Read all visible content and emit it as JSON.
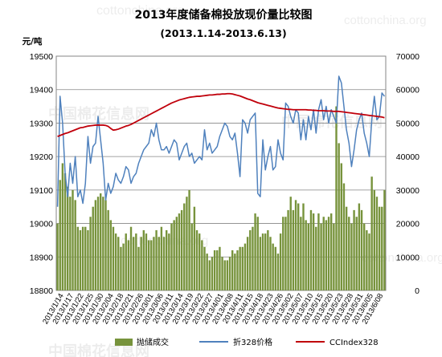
{
  "chart_data": {
    "type": "bar+line",
    "title": "2013年度储备棉投放现价量比较图",
    "subtitle": "(2013.1.14-2013.6.13)",
    "y_left_unit": "元/吨",
    "y_left_lim": [
      18800,
      19500
    ],
    "y_left_ticks": [
      19500,
      19400,
      19300,
      19200,
      19100,
      19000,
      18900,
      18800
    ],
    "y_right_lim": [
      0,
      70000
    ],
    "y_right_ticks": [
      70000,
      60000,
      50000,
      40000,
      30000,
      20000,
      10000,
      0
    ],
    "x_tick_labels": [
      "2013/1/14",
      "2013/1/17",
      "2013/1/22",
      "2013/1/25",
      "2013/1/30",
      "2013/2/04",
      "2013/2/18",
      "2013/2/21",
      "2013/2/26",
      "2013/3/01",
      "2013/3/06",
      "2013/3/11",
      "2013/3/14",
      "2013/3/19",
      "2013/3/22",
      "2013/3/27",
      "2013/4/01",
      "2013/4/08",
      "2013/4/11",
      "2013/4/15",
      "2013/4/18",
      "2013/4/23",
      "2013/4/26",
      "2013/5/02",
      "2013/5/07",
      "2013/5/10",
      "2013/5/15",
      "2013/5/20",
      "2013/5/23",
      "2013/5/28",
      "2013/5/31",
      "2013/6/05",
      "2013/6/08"
    ],
    "legend_position": "bottom",
    "grid": true,
    "series": [
      {
        "name": "抛储成交",
        "axis": "right",
        "kind": "bar",
        "color": "#77933c",
        "values": [
          20000,
          33000,
          38000,
          35000,
          31000,
          28000,
          30000,
          27000,
          19000,
          18000,
          19000,
          19000,
          18000,
          22000,
          25000,
          27000,
          28000,
          29000,
          28000,
          27000,
          24000,
          21000,
          19000,
          17000,
          16000,
          13000,
          14000,
          17000,
          15000,
          19000,
          16000,
          17000,
          13000,
          16000,
          18000,
          17000,
          15000,
          15000,
          16000,
          18000,
          16000,
          19000,
          16000,
          18000,
          17000,
          20000,
          21000,
          22000,
          23000,
          24000,
          26000,
          28000,
          30000,
          20000,
          25000,
          18000,
          17000,
          15000,
          13000,
          11000,
          9000,
          10000,
          12000,
          12000,
          13000,
          10000,
          9000,
          9000,
          10000,
          12000,
          11000,
          12000,
          13000,
          13000,
          14000,
          16000,
          18000,
          19000,
          23000,
          22000,
          16000,
          17000,
          17000,
          18000,
          16000,
          14000,
          13000,
          11000,
          17000,
          22000,
          22000,
          24000,
          28000,
          24000,
          27000,
          26000,
          22000,
          26000,
          21000,
          20000,
          24000,
          23000,
          19000,
          23000,
          20000,
          22000,
          21000,
          22000,
          23000,
          20000,
          55000,
          44000,
          38000,
          32000,
          25000,
          22000,
          20000,
          24000,
          22000,
          26000,
          24000,
          20000,
          18000,
          17000,
          34000,
          30000,
          28000,
          25000,
          25000,
          30000
        ]
      },
      {
        "name": "折328价格",
        "axis": "left",
        "kind": "line",
        "color": "#4f81bd",
        "values": [
          19050,
          19380,
          19300,
          19150,
          19080,
          19180,
          19120,
          19200,
          19080,
          19100,
          19060,
          19120,
          19260,
          19180,
          19230,
          19240,
          19320,
          19250,
          19180,
          19070,
          19120,
          19090,
          19110,
          19150,
          19130,
          19120,
          19140,
          19170,
          19160,
          19120,
          19140,
          19150,
          19180,
          19200,
          19220,
          19230,
          19240,
          19280,
          19260,
          19300,
          19250,
          19220,
          19220,
          19230,
          19210,
          19230,
          19250,
          19240,
          19190,
          19210,
          19230,
          19240,
          19200,
          19210,
          19180,
          19190,
          19200,
          19190,
          19280,
          19220,
          19240,
          19210,
          19220,
          19230,
          19260,
          19280,
          19300,
          19290,
          19260,
          19250,
          19270,
          19210,
          19140,
          19310,
          19300,
          19270,
          19310,
          19320,
          19330,
          19090,
          19080,
          19250,
          19160,
          19200,
          19230,
          19160,
          19170,
          19250,
          19210,
          19190,
          19360,
          19350,
          19320,
          19300,
          19340,
          19330,
          19250,
          19310,
          19250,
          19320,
          19280,
          19340,
          19270,
          19340,
          19370,
          19310,
          19350,
          19300,
          19340,
          19320,
          19300,
          19440,
          19420,
          19350,
          19280,
          19240,
          19170,
          19220,
          19280,
          19310,
          19330,
          19270,
          19240,
          19200,
          19310,
          19380,
          19310,
          19320,
          19390,
          19380
        ]
      },
      {
        "name": "CCIndex328",
        "axis": "left",
        "kind": "line",
        "color": "#c0000b",
        "values": [
          19260,
          19263,
          19266,
          19269,
          19271,
          19274,
          19277,
          19280,
          19283,
          19286,
          19287,
          19289,
          19291,
          19292,
          19293,
          19294,
          19294,
          19294,
          19294,
          19293,
          19290,
          19284,
          19279,
          19280,
          19282,
          19285,
          19288,
          19291,
          19293,
          19296,
          19300,
          19304,
          19308,
          19312,
          19316,
          19320,
          19324,
          19328,
          19332,
          19336,
          19340,
          19344,
          19348,
          19352,
          19356,
          19360,
          19363,
          19366,
          19369,
          19371,
          19373,
          19375,
          19377,
          19378,
          19379,
          19380,
          19380,
          19381,
          19382,
          19383,
          19384,
          19384,
          19385,
          19386,
          19386,
          19387,
          19387,
          19388,
          19388,
          19387,
          19385,
          19383,
          19381,
          19378,
          19375,
          19372,
          19370,
          19367,
          19364,
          19361,
          19359,
          19357,
          19355,
          19353,
          19351,
          19349,
          19347,
          19345,
          19344,
          19343,
          19342,
          19341,
          19341,
          19340,
          19340,
          19340,
          19340,
          19340,
          19340,
          19339,
          19339,
          19338,
          19338,
          19337,
          19337,
          19337,
          19336,
          19336,
          19336,
          19335,
          19335,
          19335,
          19334,
          19333,
          19332,
          19331,
          19330,
          19329,
          19328,
          19327,
          19326,
          19325,
          19324,
          19323,
          19322,
          19321,
          19320,
          19319,
          19318,
          19316
        ]
      }
    ]
  },
  "watermarks": [
    "cottonchina.org",
    "中国棉花信息网",
    "cottonchina.org",
    "中国棉花信息网",
    "cottonchina.org",
    "中国棉花信息网",
    "cottonchina.org"
  ]
}
